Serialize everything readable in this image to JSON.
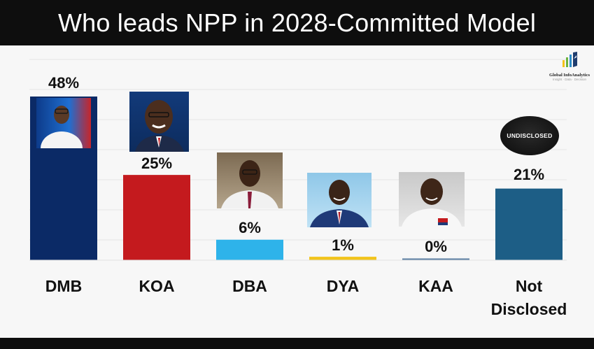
{
  "title": "Who leads NPP in 2028-Committed Model",
  "logo": {
    "name": "Global InfoAnalytics",
    "tagline": "Insight · Data · Decision"
  },
  "badge_text": "UNDISCLOSED",
  "chart_data": {
    "type": "bar",
    "title": "Who leads NPP in 2028-Committed Model",
    "categories": [
      "DMB",
      "KOA",
      "DBA",
      "DYA",
      "KAA",
      "Not Disclosed"
    ],
    "values": [
      48,
      25,
      6,
      1,
      0,
      21
    ],
    "value_labels": [
      "48%",
      "25%",
      "6%",
      "1%",
      "0%",
      "21%"
    ],
    "colors": [
      "#0b2a66",
      "#c41a1e",
      "#2eb3ea",
      "#f2c41b",
      "#5c7fa3",
      "#1d5e86"
    ],
    "ylim": [
      0,
      50
    ],
    "grid": true,
    "legend": "none",
    "xlabel": "",
    "ylabel": ""
  }
}
